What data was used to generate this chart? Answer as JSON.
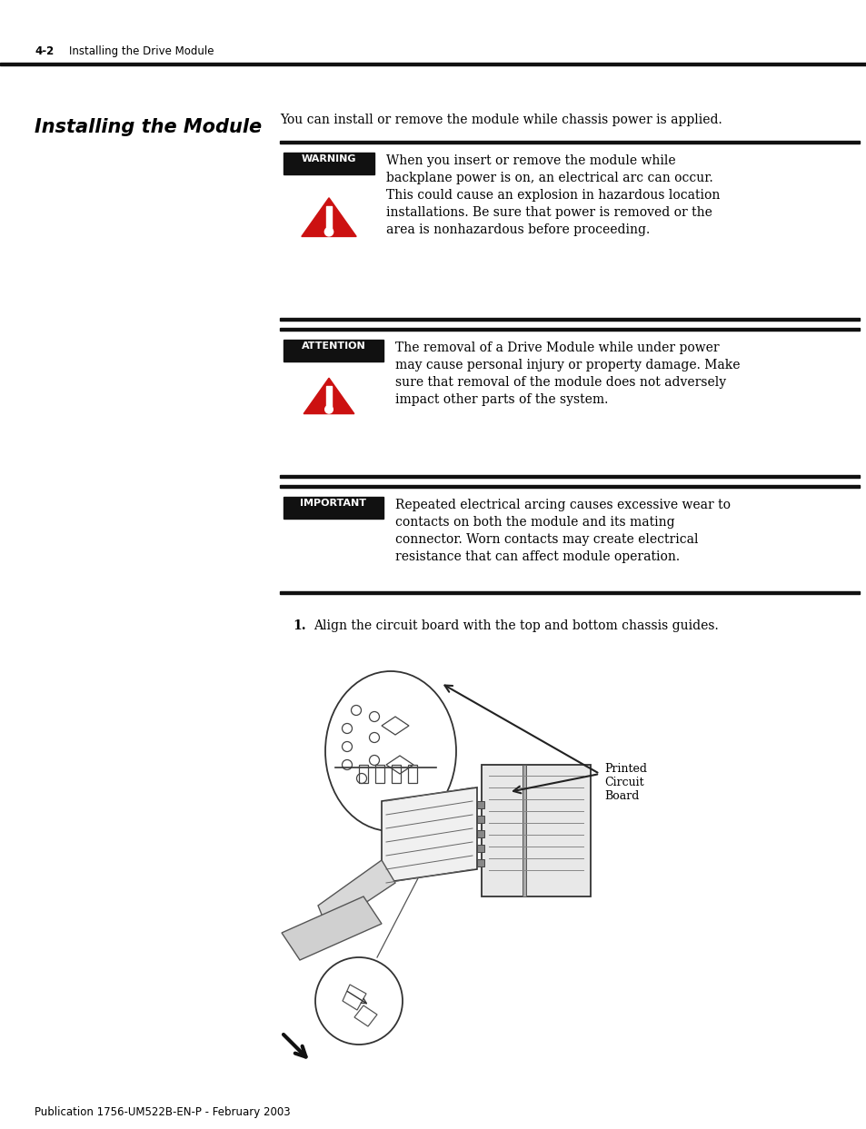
{
  "page_header_number": "4-2",
  "page_header_text": "Installing the Drive Module",
  "section_title": "Installing the Module",
  "intro_text": "You can install or remove the module while chassis power is applied.",
  "warning_label": "WARNING",
  "warning_text": "When you insert or remove the module while\nbackplane power is on, an electrical arc can occur.\nThis could cause an explosion in hazardous location\ninstallations. Be sure that power is removed or the\narea is nonhazardous before proceeding.",
  "attention_label": "ATTENTION",
  "attention_text": "The removal of a Drive Module while under power\nmay cause personal injury or property damage. Make\nsure that removal of the module does not adversely\nimpact other parts of the system.",
  "important_label": "IMPORTANT",
  "important_text": "Repeated electrical arcing causes excessive wear to\ncontacts on both the module and its mating\nconnector. Worn contacts may create electrical\nresistance that can affect module operation.",
  "step1_label": "1.",
  "step1_text": "Align the circuit board with the top and bottom chassis guides.",
  "label_printed_circuit_board": "Printed\nCircuit\nBoard",
  "footer_text": "Publication 1756-UM522B-EN-P - February 2003",
  "bg_color": "#ffffff",
  "text_color": "#000000",
  "label_bg": "#111111",
  "label_text_color": "#ffffff",
  "red_color": "#cc1111",
  "line_color": "#111111"
}
